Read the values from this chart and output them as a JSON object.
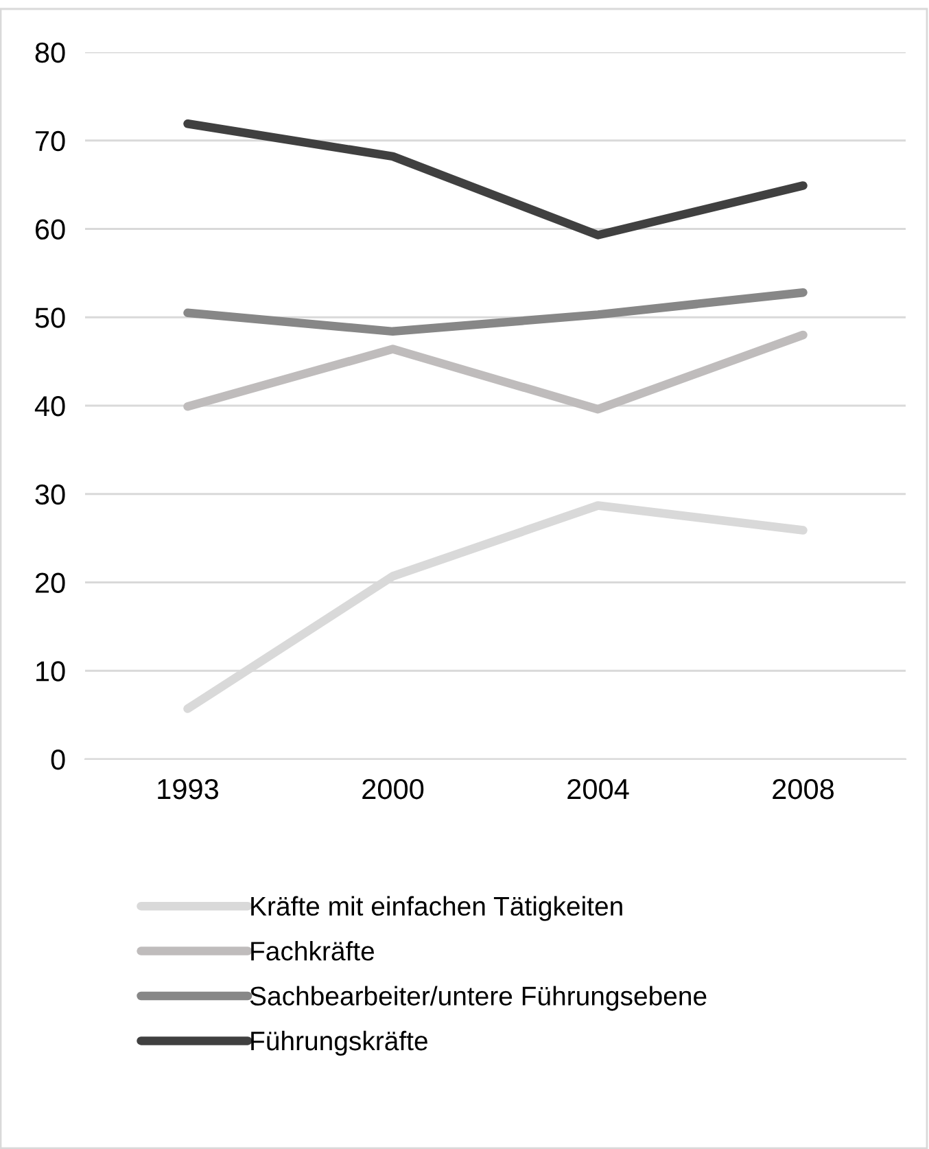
{
  "chart_data": {
    "type": "line",
    "categories": [
      "1993",
      "2000",
      "2004",
      "2008"
    ],
    "ylim": [
      0,
      80
    ],
    "yticks": [
      0,
      10,
      20,
      30,
      40,
      50,
      60,
      70,
      80
    ],
    "grid": "y",
    "legend": "bottom",
    "marker": "none",
    "line_style": "solid",
    "series": [
      {
        "name": "Kräfte mit einfachen Tätigkeiten",
        "color": "#d9d9d9",
        "values": [
          5.7,
          20.7,
          28.7,
          25.9
        ]
      },
      {
        "name": "Fachkräfte",
        "color": "#bfbcbc",
        "values": [
          39.9,
          46.4,
          39.6,
          48.0
        ]
      },
      {
        "name": "Sachbearbeiter/untere Führungsebene",
        "color": "#878787",
        "values": [
          50.5,
          48.4,
          50.3,
          52.8
        ]
      },
      {
        "name": "Führungskräfte",
        "color": "#404040",
        "values": [
          71.9,
          68.2,
          59.3,
          64.9
        ]
      }
    ]
  }
}
